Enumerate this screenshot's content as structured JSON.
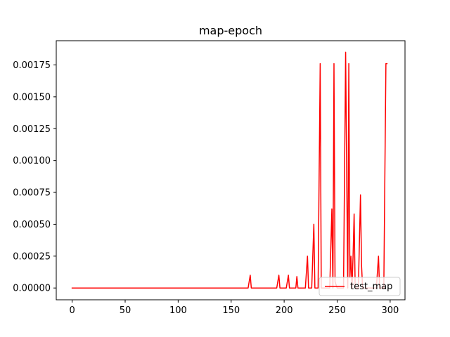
{
  "chart_data": {
    "type": "line",
    "title": "map-epoch",
    "xlabel": "",
    "ylabel": "",
    "xlim": [
      -15,
      314
    ],
    "ylim": [
      -9.25e-05,
      0.00194
    ],
    "xticks": [
      0,
      50,
      100,
      150,
      200,
      250,
      300
    ],
    "xtick_labels": [
      "0",
      "50",
      "100",
      "150",
      "200",
      "250",
      "300"
    ],
    "yticks": [
      0,
      0.00025,
      0.0005,
      0.00075,
      0.001,
      0.00125,
      0.0015,
      0.00175
    ],
    "ytick_labels": [
      "0.00000",
      "0.00025",
      "0.00050",
      "0.00075",
      "0.00100",
      "0.00125",
      "0.00150",
      "0.00175"
    ],
    "grid": false,
    "legend_position": "lower-right",
    "series": [
      {
        "name": "test_map",
        "color": "#ff0000",
        "points": [
          [
            0,
            0
          ],
          [
            166,
            0
          ],
          [
            168,
            0.0001
          ],
          [
            169,
            0
          ],
          [
            193,
            0
          ],
          [
            195,
            0.0001
          ],
          [
            196,
            0
          ],
          [
            202,
            0
          ],
          [
            204,
            0.0001
          ],
          [
            205,
            0
          ],
          [
            211,
            0
          ],
          [
            212,
            9e-05
          ],
          [
            213,
            0
          ],
          [
            220,
            0
          ],
          [
            222,
            0.00025
          ],
          [
            223,
            0
          ],
          [
            226,
            0
          ],
          [
            228,
            0.0005
          ],
          [
            229,
            0
          ],
          [
            232,
            0
          ],
          [
            234,
            0.00176
          ],
          [
            235,
            0
          ],
          [
            243,
            0
          ],
          [
            245,
            0.00062
          ],
          [
            246,
            0
          ],
          [
            247,
            0.00176
          ],
          [
            248,
            5e-05
          ],
          [
            250,
            0
          ],
          [
            256,
            0
          ],
          [
            258,
            0.00185
          ],
          [
            259,
            0.0009
          ],
          [
            260,
            0
          ],
          [
            261,
            0.00176
          ],
          [
            262,
            8e-05
          ],
          [
            263,
            0.00025
          ],
          [
            264,
            0
          ],
          [
            265,
            0.00025
          ],
          [
            266,
            0.00058
          ],
          [
            267,
            0
          ],
          [
            270,
            0
          ],
          [
            272,
            0.00073
          ],
          [
            273,
            0.00018
          ],
          [
            274,
            0
          ],
          [
            287,
            0
          ],
          [
            289,
            0.00025
          ],
          [
            290,
            0
          ],
          [
            294,
            0
          ],
          [
            296,
            0.00176
          ],
          [
            297,
            0.00176
          ]
        ]
      }
    ]
  }
}
